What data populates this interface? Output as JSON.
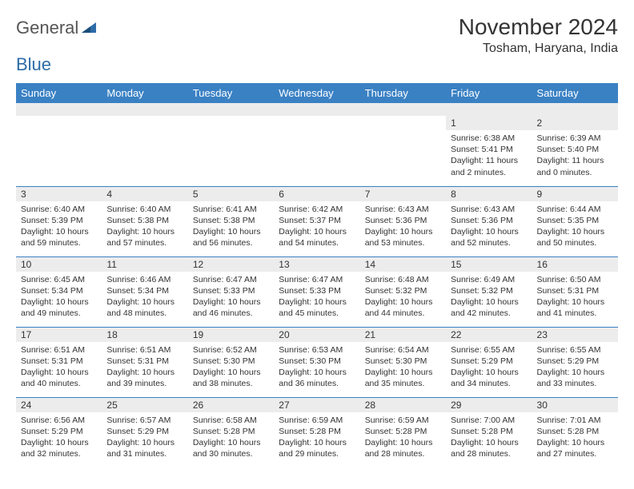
{
  "logo": {
    "text_general": "General",
    "text_blue": "Blue"
  },
  "title": "November 2024",
  "location": "Tosham, Haryana, India",
  "header_bg": "#3a81c4",
  "daynum_bg": "#ececec",
  "border_color": "#3a81c4",
  "days_of_week": [
    "Sunday",
    "Monday",
    "Tuesday",
    "Wednesday",
    "Thursday",
    "Friday",
    "Saturday"
  ],
  "weeks": [
    [
      null,
      null,
      null,
      null,
      null,
      {
        "n": "1",
        "sunrise": "6:38 AM",
        "sunset": "5:41 PM",
        "daylight": "11 hours and 2 minutes."
      },
      {
        "n": "2",
        "sunrise": "6:39 AM",
        "sunset": "5:40 PM",
        "daylight": "11 hours and 0 minutes."
      }
    ],
    [
      {
        "n": "3",
        "sunrise": "6:40 AM",
        "sunset": "5:39 PM",
        "daylight": "10 hours and 59 minutes."
      },
      {
        "n": "4",
        "sunrise": "6:40 AM",
        "sunset": "5:38 PM",
        "daylight": "10 hours and 57 minutes."
      },
      {
        "n": "5",
        "sunrise": "6:41 AM",
        "sunset": "5:38 PM",
        "daylight": "10 hours and 56 minutes."
      },
      {
        "n": "6",
        "sunrise": "6:42 AM",
        "sunset": "5:37 PM",
        "daylight": "10 hours and 54 minutes."
      },
      {
        "n": "7",
        "sunrise": "6:43 AM",
        "sunset": "5:36 PM",
        "daylight": "10 hours and 53 minutes."
      },
      {
        "n": "8",
        "sunrise": "6:43 AM",
        "sunset": "5:36 PM",
        "daylight": "10 hours and 52 minutes."
      },
      {
        "n": "9",
        "sunrise": "6:44 AM",
        "sunset": "5:35 PM",
        "daylight": "10 hours and 50 minutes."
      }
    ],
    [
      {
        "n": "10",
        "sunrise": "6:45 AM",
        "sunset": "5:34 PM",
        "daylight": "10 hours and 49 minutes."
      },
      {
        "n": "11",
        "sunrise": "6:46 AM",
        "sunset": "5:34 PM",
        "daylight": "10 hours and 48 minutes."
      },
      {
        "n": "12",
        "sunrise": "6:47 AM",
        "sunset": "5:33 PM",
        "daylight": "10 hours and 46 minutes."
      },
      {
        "n": "13",
        "sunrise": "6:47 AM",
        "sunset": "5:33 PM",
        "daylight": "10 hours and 45 minutes."
      },
      {
        "n": "14",
        "sunrise": "6:48 AM",
        "sunset": "5:32 PM",
        "daylight": "10 hours and 44 minutes."
      },
      {
        "n": "15",
        "sunrise": "6:49 AM",
        "sunset": "5:32 PM",
        "daylight": "10 hours and 42 minutes."
      },
      {
        "n": "16",
        "sunrise": "6:50 AM",
        "sunset": "5:31 PM",
        "daylight": "10 hours and 41 minutes."
      }
    ],
    [
      {
        "n": "17",
        "sunrise": "6:51 AM",
        "sunset": "5:31 PM",
        "daylight": "10 hours and 40 minutes."
      },
      {
        "n": "18",
        "sunrise": "6:51 AM",
        "sunset": "5:31 PM",
        "daylight": "10 hours and 39 minutes."
      },
      {
        "n": "19",
        "sunrise": "6:52 AM",
        "sunset": "5:30 PM",
        "daylight": "10 hours and 38 minutes."
      },
      {
        "n": "20",
        "sunrise": "6:53 AM",
        "sunset": "5:30 PM",
        "daylight": "10 hours and 36 minutes."
      },
      {
        "n": "21",
        "sunrise": "6:54 AM",
        "sunset": "5:30 PM",
        "daylight": "10 hours and 35 minutes."
      },
      {
        "n": "22",
        "sunrise": "6:55 AM",
        "sunset": "5:29 PM",
        "daylight": "10 hours and 34 minutes."
      },
      {
        "n": "23",
        "sunrise": "6:55 AM",
        "sunset": "5:29 PM",
        "daylight": "10 hours and 33 minutes."
      }
    ],
    [
      {
        "n": "24",
        "sunrise": "6:56 AM",
        "sunset": "5:29 PM",
        "daylight": "10 hours and 32 minutes."
      },
      {
        "n": "25",
        "sunrise": "6:57 AM",
        "sunset": "5:29 PM",
        "daylight": "10 hours and 31 minutes."
      },
      {
        "n": "26",
        "sunrise": "6:58 AM",
        "sunset": "5:28 PM",
        "daylight": "10 hours and 30 minutes."
      },
      {
        "n": "27",
        "sunrise": "6:59 AM",
        "sunset": "5:28 PM",
        "daylight": "10 hours and 29 minutes."
      },
      {
        "n": "28",
        "sunrise": "6:59 AM",
        "sunset": "5:28 PM",
        "daylight": "10 hours and 28 minutes."
      },
      {
        "n": "29",
        "sunrise": "7:00 AM",
        "sunset": "5:28 PM",
        "daylight": "10 hours and 28 minutes."
      },
      {
        "n": "30",
        "sunrise": "7:01 AM",
        "sunset": "5:28 PM",
        "daylight": "10 hours and 27 minutes."
      }
    ]
  ],
  "labels": {
    "sunrise": "Sunrise: ",
    "sunset": "Sunset: ",
    "daylight": "Daylight: "
  }
}
